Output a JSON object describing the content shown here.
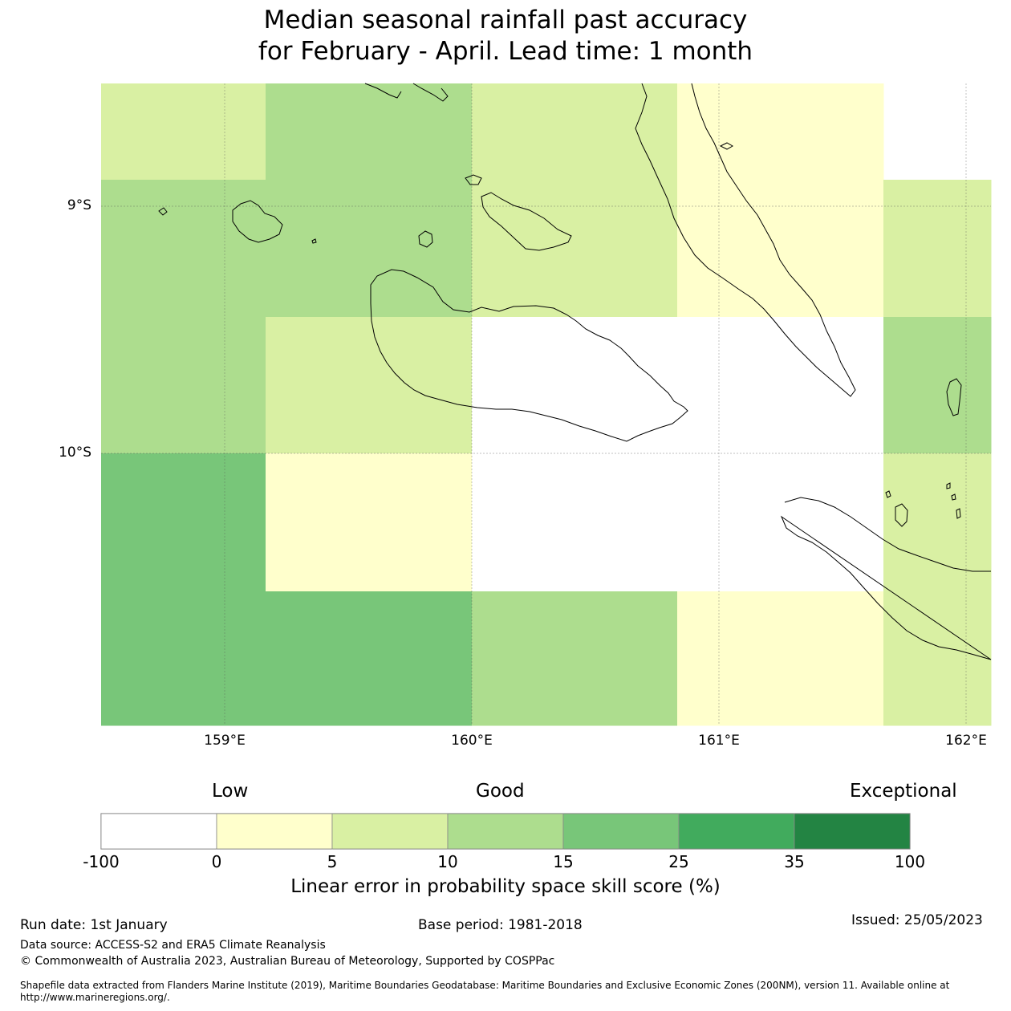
{
  "title": {
    "line1": "Median seasonal rainfall past accuracy",
    "line2": "for February - April. Lead time: 1 month"
  },
  "map": {
    "lat_labels": [
      "9°S",
      "10°S"
    ],
    "lon_labels": [
      "159°E",
      "160°E",
      "161°E",
      "162°E"
    ],
    "grid_cell_skill_classes": [
      [
        "5-10",
        "10-15",
        "10-15",
        "5-10",
        "0-5",
        "0-5",
        "none"
      ],
      [
        "10-15",
        "10-15",
        "10-15",
        "5-10",
        "0-5",
        "0-5",
        "5-10"
      ],
      [
        "10-15",
        "5-10",
        "5-10",
        "-100-0",
        "-100-0",
        "-100-0",
        "10-15"
      ],
      [
        "15-25",
        "0-5",
        "0-5",
        "-100-0",
        "-100-0",
        "-100-0",
        "5-10"
      ],
      [
        "15-25",
        "15-25",
        "15-25",
        "10-15",
        "0-5",
        "0-5",
        "5-10"
      ]
    ]
  },
  "legend": {
    "categories": [
      "Low",
      "Good",
      "Exceptional"
    ],
    "ticks": [
      "-100",
      "0",
      "5",
      "10",
      "15",
      "25",
      "35",
      "100"
    ],
    "colors": [
      "#ffffff",
      "#ffffcc",
      "#d9f0a3",
      "#addd8e",
      "#78c679",
      "#41ab5d",
      "#238443"
    ],
    "title": "Linear error in probability space skill score (%)"
  },
  "footer": {
    "run_date": "Run date: 1st January",
    "base_period": "Base period: 1981-2018",
    "issued": "Issued: 25/05/2023",
    "data_source": "Data source: ACCESS-S2 and ERA5 Climate Reanalysis",
    "copyright": "© Commonwealth of Australia 2023, Australian Bureau of Meteorology, Supported by COSPPac",
    "shapefile_line1": "Shapefile data extracted from Flanders Marine Institute (2019), Maritime Boundaries Geodatabase: Maritime Boundaries and Exclusive Economic Zones (200NM), version 11. Available online at",
    "shapefile_line2": "http://www.marineregions.org/."
  }
}
